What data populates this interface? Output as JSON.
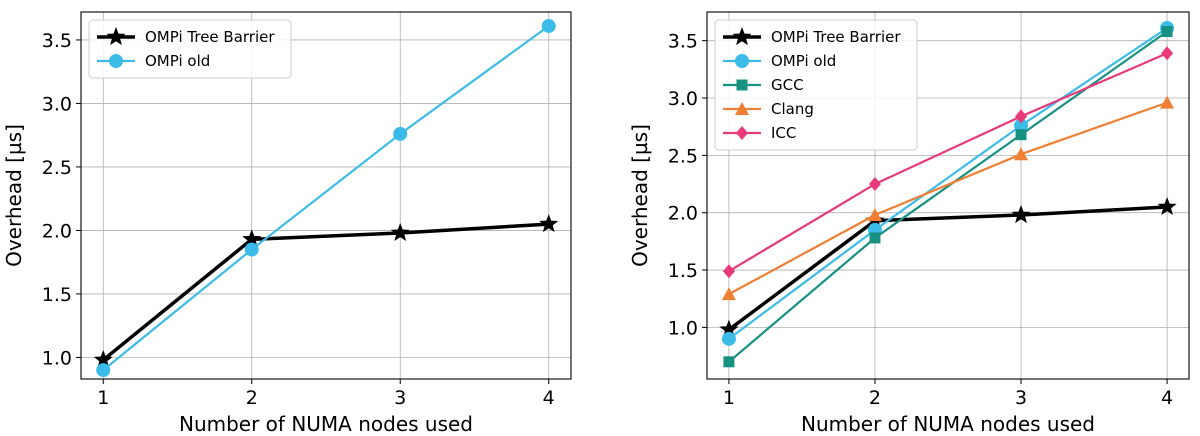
{
  "chart_data": [
    {
      "type": "line",
      "title": "",
      "xlabel": "Number of NUMA nodes used",
      "ylabel": "Overhead [µs]",
      "x": [
        1,
        2,
        3,
        4
      ],
      "xlim": [
        0.85,
        4.15
      ],
      "ylim": [
        0.83,
        3.72
      ],
      "xticks": [
        1,
        2,
        3,
        4
      ],
      "yticks": [
        1.0,
        1.5,
        2.0,
        2.5,
        3.0,
        3.5
      ],
      "grid": true,
      "legend_position": "top-left",
      "series": [
        {
          "name": "OMPi Tree Barrier",
          "values": [
            0.98,
            1.93,
            1.98,
            2.05
          ],
          "color": "#000000",
          "marker": "star"
        },
        {
          "name": "OMPi old",
          "values": [
            0.9,
            1.85,
            2.76,
            3.61
          ],
          "color": "#3bbce8",
          "marker": "circle"
        }
      ]
    },
    {
      "type": "line",
      "title": "",
      "xlabel": "Number of NUMA nodes used",
      "ylabel": "Overhead [µs]",
      "x": [
        1,
        2,
        3,
        4
      ],
      "xlim": [
        0.85,
        4.15
      ],
      "ylim": [
        0.55,
        3.75
      ],
      "xticks": [
        1,
        2,
        3,
        4
      ],
      "yticks": [
        1.0,
        1.5,
        2.0,
        2.5,
        3.0,
        3.5
      ],
      "grid": true,
      "legend_position": "top-left",
      "series": [
        {
          "name": "OMPi Tree Barrier",
          "values": [
            0.98,
            1.93,
            1.98,
            2.05
          ],
          "color": "#000000",
          "marker": "star"
        },
        {
          "name": "OMPi old",
          "values": [
            0.9,
            1.85,
            2.76,
            3.61
          ],
          "color": "#3bbce8",
          "marker": "circle"
        },
        {
          "name": "GCC",
          "values": [
            0.7,
            1.78,
            2.68,
            3.58
          ],
          "color": "#169182",
          "marker": "square"
        },
        {
          "name": "Clang",
          "values": [
            1.29,
            1.98,
            2.51,
            2.96
          ],
          "color": "#ef7f33",
          "marker": "triangle"
        },
        {
          "name": "ICC",
          "values": [
            1.49,
            2.25,
            2.84,
            3.39
          ],
          "color": "#e8397a",
          "marker": "diamond"
        }
      ]
    }
  ]
}
